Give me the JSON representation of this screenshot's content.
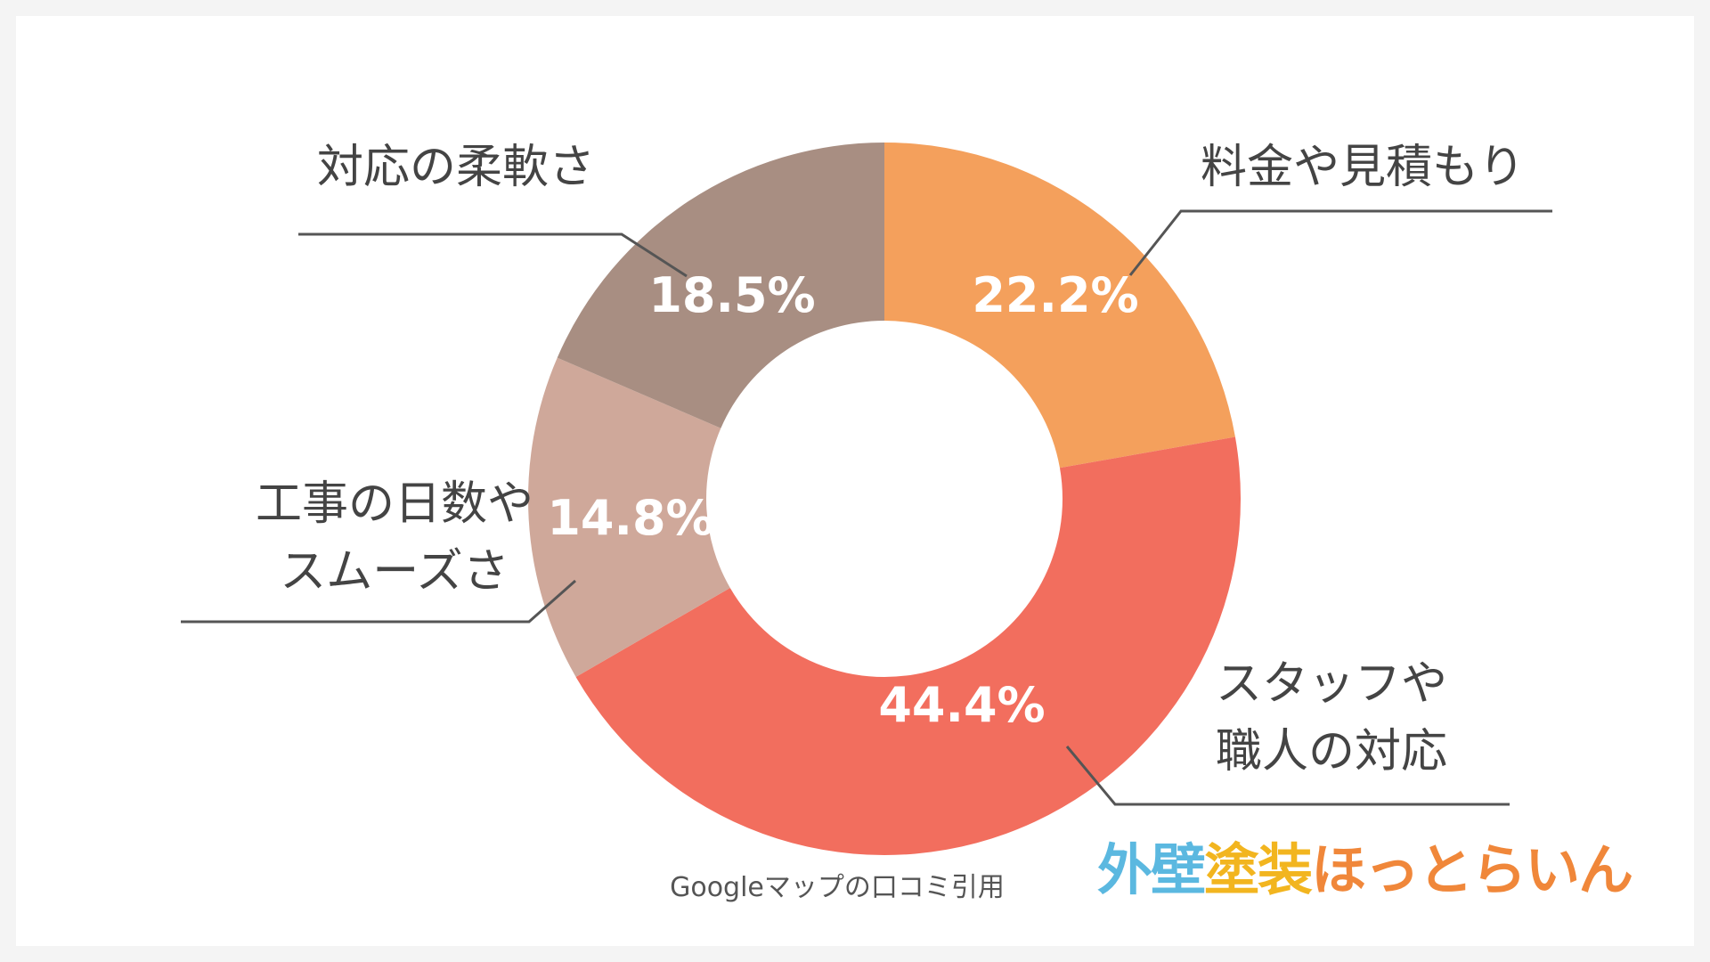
{
  "chart_data": {
    "type": "pie",
    "variant": "donut",
    "slices": [
      {
        "label": "料金や見積もり",
        "value": 22.2,
        "display": "22.2%",
        "color": "#F4A05C"
      },
      {
        "label": "スタッフや職人の対応",
        "label_lines": [
          "スタッフや",
          "職人の対応"
        ],
        "value": 44.4,
        "display": "44.4%",
        "color": "#F26E5E"
      },
      {
        "label": "工事の日数やスムーズさ",
        "label_lines": [
          "工事の日数や",
          "スムーズさ"
        ],
        "value": 14.8,
        "display": "14.8%",
        "color": "#CFA89A"
      },
      {
        "label": "対応の柔軟さ",
        "value": 18.5,
        "display": "18.5%",
        "color": "#A88E82"
      }
    ],
    "start": "12 o'clock",
    "direction": "clockwise"
  },
  "source_note": "Googleマップの口コミ引用",
  "logo": {
    "text": "外壁塗装ほっとらいん",
    "colors": [
      "#5BB8E0",
      "#5BB8E0",
      "#F2B51F",
      "#F2B51F",
      "#F0873A",
      "#F0873A",
      "#F0873A",
      "#F0873A",
      "#F0873A",
      "#F0873A"
    ]
  }
}
